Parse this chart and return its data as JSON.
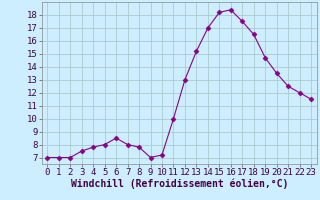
{
  "x": [
    0,
    1,
    2,
    3,
    4,
    5,
    6,
    7,
    8,
    9,
    10,
    11,
    12,
    13,
    14,
    15,
    16,
    17,
    18,
    19,
    20,
    21,
    22,
    23
  ],
  "y": [
    7.0,
    7.0,
    7.0,
    7.5,
    7.8,
    8.0,
    8.5,
    8.0,
    7.8,
    7.0,
    7.2,
    10.0,
    13.0,
    15.2,
    17.0,
    18.2,
    18.4,
    17.5,
    16.5,
    14.7,
    13.5,
    12.5,
    12.0,
    11.5
  ],
  "line_color": "#880088",
  "marker": "D",
  "marker_size": 2.5,
  "background_color": "#cceeff",
  "grid_color": "#aacccc",
  "xlabel": "Windchill (Refroidissement éolien,°C)",
  "xlabel_fontsize": 7,
  "tick_fontsize": 6.5,
  "xlim": [
    -0.5,
    23.5
  ],
  "ylim": [
    6.5,
    19.0
  ],
  "yticks": [
    7,
    8,
    9,
    10,
    11,
    12,
    13,
    14,
    15,
    16,
    17,
    18
  ],
  "xticks": [
    0,
    1,
    2,
    3,
    4,
    5,
    6,
    7,
    8,
    9,
    10,
    11,
    12,
    13,
    14,
    15,
    16,
    17,
    18,
    19,
    20,
    21,
    22,
    23
  ]
}
